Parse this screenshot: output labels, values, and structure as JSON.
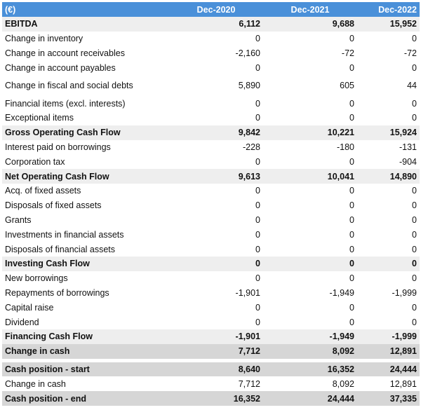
{
  "header": {
    "label": "(€)",
    "years": [
      "Dec-2020",
      "Dec-2021",
      "Dec-2022"
    ]
  },
  "rows": [
    {
      "label": "EBITDA",
      "values": [
        "6,112",
        "9,688",
        "15,952"
      ]
    },
    {
      "label": "Change in inventory",
      "values": [
        "0",
        "0",
        "0"
      ]
    },
    {
      "label": "Change in account receivables",
      "values": [
        "-2,160",
        "-72",
        "-72"
      ]
    },
    {
      "label": "Change in account payables",
      "values": [
        "0",
        "0",
        "0"
      ]
    },
    {
      "label": "Change in fiscal and social debts",
      "values": [
        "5,890",
        "605",
        "44"
      ]
    },
    {
      "label": "Financial items (excl. interests)",
      "values": [
        "0",
        "0",
        "0"
      ]
    },
    {
      "label": "Exceptional items",
      "values": [
        "0",
        "0",
        "0"
      ]
    },
    {
      "label": "Gross Operating Cash Flow",
      "values": [
        "9,842",
        "10,221",
        "15,924"
      ]
    },
    {
      "label": "Interest paid on borrowings",
      "values": [
        "-228",
        "-180",
        "-131"
      ]
    },
    {
      "label": "Corporation tax",
      "values": [
        "0",
        "0",
        "-904"
      ]
    },
    {
      "label": "Net Operating Cash Flow",
      "values": [
        "9,613",
        "10,041",
        "14,890"
      ]
    },
    {
      "label": "Acq. of fixed assets",
      "values": [
        "0",
        "0",
        "0"
      ]
    },
    {
      "label": "Disposals of fixed assets",
      "values": [
        "0",
        "0",
        "0"
      ]
    },
    {
      "label": "Grants",
      "values": [
        "0",
        "0",
        "0"
      ]
    },
    {
      "label": "Investments in financial assets",
      "values": [
        "0",
        "0",
        "0"
      ]
    },
    {
      "label": "Disposals of financial assets",
      "values": [
        "0",
        "0",
        "0"
      ]
    },
    {
      "label": "Investing Cash Flow",
      "values": [
        "0",
        "0",
        "0"
      ]
    },
    {
      "label": "New borrowings",
      "values": [
        "0",
        "0",
        "0"
      ]
    },
    {
      "label": "Repayments of borrowings",
      "values": [
        "-1,901",
        "-1,949",
        "-1,999"
      ]
    },
    {
      "label": "Capital raise",
      "values": [
        "0",
        "0",
        "0"
      ]
    },
    {
      "label": "Dividend",
      "values": [
        "0",
        "0",
        "0"
      ]
    },
    {
      "label": "Financing Cash Flow",
      "values": [
        "-1,901",
        "-1,949",
        "-1,999"
      ]
    },
    {
      "label": "Change in cash",
      "values": [
        "7,712",
        "8,092",
        "12,891"
      ]
    }
  ],
  "cash_rows": [
    {
      "label": "Cash position - start",
      "values": [
        "8,640",
        "16,352",
        "24,444"
      ]
    },
    {
      "label": "Change in cash",
      "values": [
        "7,712",
        "8,092",
        "12,891"
      ]
    },
    {
      "label": "Cash position - end",
      "values": [
        "16,352",
        "24,444",
        "37,335"
      ]
    }
  ]
}
